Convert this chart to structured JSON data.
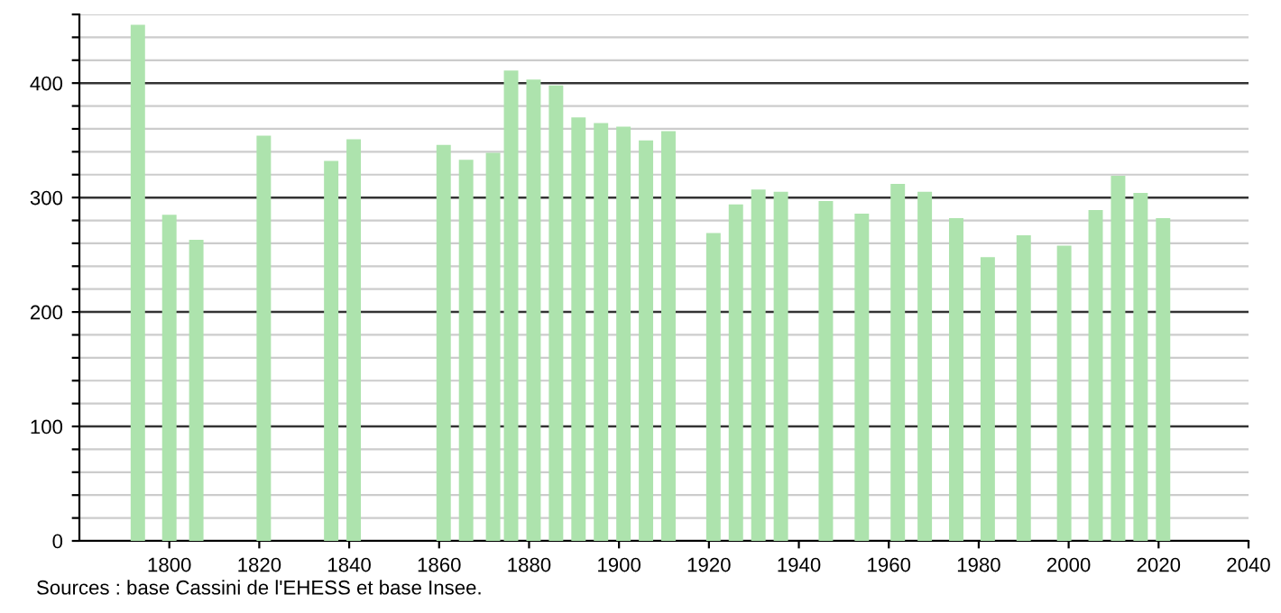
{
  "chart_data": {
    "type": "bar",
    "x": [
      1793,
      1800,
      1806,
      1821,
      1836,
      1841,
      1861,
      1866,
      1872,
      1876,
      1881,
      1886,
      1891,
      1896,
      1901,
      1906,
      1911,
      1921,
      1926,
      1931,
      1936,
      1946,
      1954,
      1962,
      1968,
      1975,
      1982,
      1990,
      1999,
      2006,
      2011,
      2016,
      2021
    ],
    "values": [
      451,
      285,
      263,
      354,
      332,
      351,
      346,
      333,
      339,
      411,
      403,
      398,
      370,
      365,
      362,
      350,
      358,
      269,
      294,
      307,
      305,
      297,
      286,
      312,
      305,
      282,
      248,
      267,
      258,
      289,
      319,
      304,
      282
    ],
    "color": "#ade3ad",
    "xlim": [
      1780,
      2040
    ],
    "xticks": [
      1800,
      1820,
      1840,
      1860,
      1880,
      1900,
      1920,
      1940,
      1960,
      1980,
      2000,
      2020,
      2040
    ],
    "ylim": [
      0,
      460
    ],
    "yticks": [
      0,
      {
        "value": 20,
        "label": null
      },
      {
        "value": 40,
        "label": null
      },
      {
        "value": 60,
        "label": null
      },
      {
        "value": 80,
        "label": null
      },
      100,
      {
        "value": 120,
        "label": null
      },
      {
        "value": 140,
        "label": null
      },
      {
        "value": 160,
        "label": null
      },
      {
        "value": 180,
        "label": null
      },
      200,
      {
        "value": 220,
        "label": null
      },
      {
        "value": 240,
        "label": null
      },
      {
        "value": 260,
        "label": null
      },
      {
        "value": 280,
        "label": null
      },
      300,
      {
        "value": 320,
        "label": null
      },
      {
        "value": 340,
        "label": null
      },
      {
        "value": 360,
        "label": null
      },
      {
        "value": 380,
        "label": null
      },
      400,
      {
        "value": 420,
        "label": null
      },
      {
        "value": 440,
        "label": null
      },
      {
        "value": 460,
        "label": null
      }
    ],
    "grid": "y",
    "annotations": [
      "Sources : base Cassini de l'EHESS et base Insee."
    ]
  }
}
